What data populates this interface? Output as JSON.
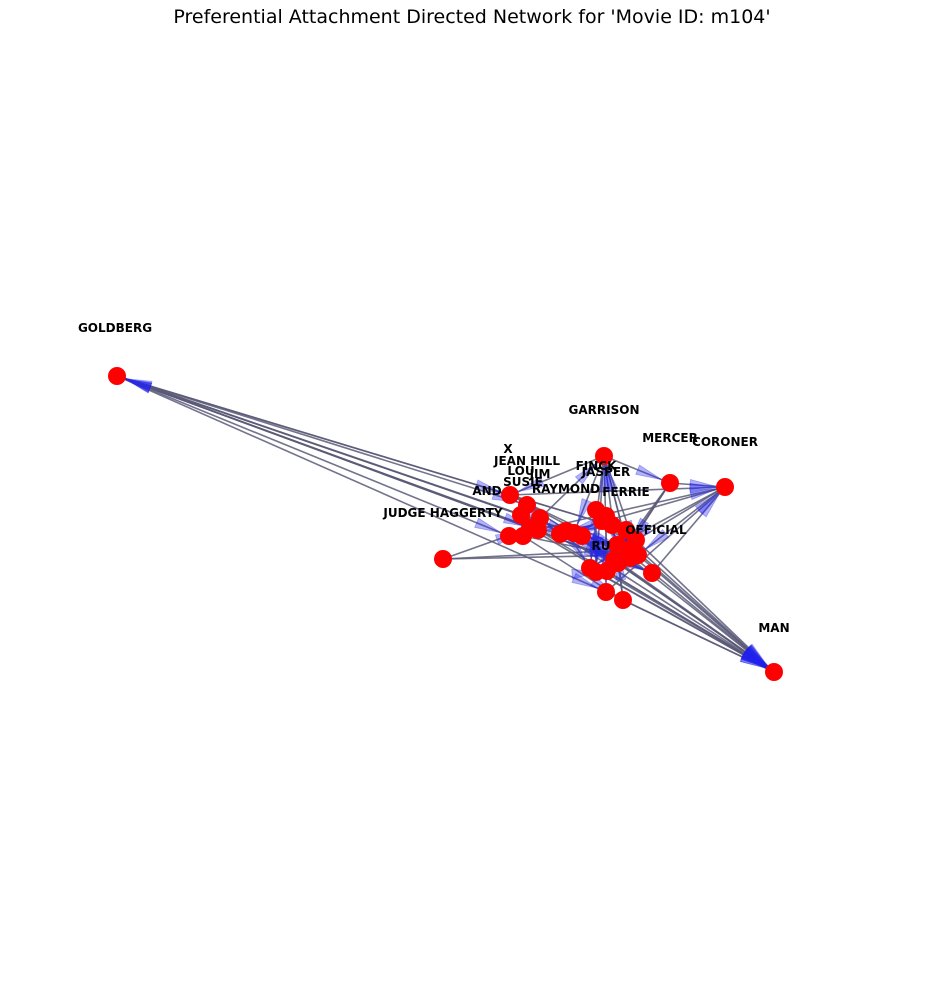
{
  "title": "Preferential Attachment Directed Network for 'Movie ID: m104'",
  "colors": {
    "node": "#ff0000",
    "edge": "#5a5a78",
    "arrow": "#2222ee"
  },
  "nodes": [
    {
      "id": "GOLDBERG",
      "label": "GOLDBERG"
    },
    {
      "id": "GARRISON",
      "label": "GARRISON"
    },
    {
      "id": "MERCER",
      "label": "MERCER"
    },
    {
      "id": "CORONER",
      "label": "CORONER"
    },
    {
      "id": "X",
      "label": "X"
    },
    {
      "id": "JEAN HILL",
      "label": "JEAN HILL"
    },
    {
      "id": "LOU",
      "label": "LOU"
    },
    {
      "id": "JIM",
      "label": "JIM"
    },
    {
      "id": "SUSIE",
      "label": "SUSIE"
    },
    {
      "id": "FINCK",
      "label": "FINCK"
    },
    {
      "id": "JASPER",
      "label": "JASPER"
    },
    {
      "id": "RAYMOND",
      "label": "RAYMOND"
    },
    {
      "id": "FERRIE",
      "label": "FERRIE"
    },
    {
      "id": "ANDY",
      "label": "AND"
    },
    {
      "id": "JUDGE HAGGERTY",
      "label": "JUDGE HAGGERTY"
    },
    {
      "id": "OFFICIAL",
      "label": "OFFICIAL"
    },
    {
      "id": "RUDOLPH",
      "label": "RU"
    },
    {
      "id": "MAN",
      "label": "MAN"
    },
    {
      "id": "N1",
      "label": ""
    },
    {
      "id": "N2",
      "label": ""
    },
    {
      "id": "N3",
      "label": ""
    },
    {
      "id": "N4",
      "label": ""
    },
    {
      "id": "N5",
      "label": ""
    },
    {
      "id": "N6",
      "label": ""
    },
    {
      "id": "N7",
      "label": ""
    },
    {
      "id": "N8",
      "label": ""
    },
    {
      "id": "N9",
      "label": ""
    },
    {
      "id": "N10",
      "label": ""
    },
    {
      "id": "N11",
      "label": ""
    },
    {
      "id": "N12",
      "label": ""
    },
    {
      "id": "N13",
      "label": ""
    },
    {
      "id": "N14",
      "label": ""
    },
    {
      "id": "N15",
      "label": ""
    },
    {
      "id": "N16",
      "label": ""
    },
    {
      "id": "N17",
      "label": ""
    },
    {
      "id": "N18",
      "label": ""
    }
  ],
  "edges": [
    [
      "GOLDBERG",
      "X"
    ],
    [
      "GOLDBERG",
      "ANDY"
    ],
    [
      "GOLDBERG",
      "JEAN HILL"
    ],
    [
      "GOLDBERG",
      "N1"
    ],
    [
      "GOLDBERG",
      "N2"
    ],
    [
      "GOLDBERG",
      "N5"
    ],
    [
      "GOLDBERG",
      "N9"
    ],
    [
      "GOLDBERG",
      "N10"
    ],
    [
      "N1",
      "GOLDBERG"
    ],
    [
      "N2",
      "GOLDBERG"
    ],
    [
      "N9",
      "GOLDBERG"
    ],
    [
      "FERRIE",
      "GOLDBERG"
    ],
    [
      "GARRISON",
      "X"
    ],
    [
      "GARRISON",
      "N6"
    ],
    [
      "GARRISON",
      "N3"
    ],
    [
      "GARRISON",
      "N14"
    ],
    [
      "GARRISON",
      "MERCER"
    ],
    [
      "GARRISON",
      "N8"
    ],
    [
      "GARRISON",
      "N12"
    ],
    [
      "MERCER",
      "N5"
    ],
    [
      "MERCER",
      "N7"
    ],
    [
      "MERCER",
      "CORONER"
    ],
    [
      "MERCER",
      "N13"
    ],
    [
      "CORONER",
      "N12"
    ],
    [
      "CORONER",
      "N15"
    ],
    [
      "CORONER",
      "N4"
    ],
    [
      "CORONER",
      "N6"
    ],
    [
      "X",
      "N5"
    ],
    [
      "X",
      "FERRIE"
    ],
    [
      "X",
      "N14"
    ],
    [
      "JEAN HILL",
      "N7"
    ],
    [
      "LOU",
      "N9"
    ],
    [
      "JIM",
      "N15"
    ],
    [
      "FINCK",
      "N8"
    ],
    [
      "JASPER",
      "N10"
    ],
    [
      "RAYMOND",
      "N12"
    ],
    [
      "SUSIE",
      "N11"
    ],
    [
      "SUSIE",
      "N14"
    ],
    [
      "JUDGE HAGGERTY",
      "N16"
    ],
    [
      "JUDGE HAGGERTY",
      "N6"
    ],
    [
      "JUDGE HAGGERTY",
      "N5"
    ],
    [
      "N1",
      "N13"
    ],
    [
      "N2",
      "N16"
    ],
    [
      "N3",
      "N17"
    ],
    [
      "N4",
      "N18"
    ],
    [
      "N1",
      "MAN"
    ],
    [
      "N2",
      "MAN"
    ],
    [
      "N3",
      "MAN"
    ],
    [
      "N5",
      "MAN"
    ],
    [
      "N6",
      "MAN"
    ],
    [
      "N7",
      "MAN"
    ],
    [
      "N8",
      "MAN"
    ],
    [
      "N10",
      "MAN"
    ],
    [
      "N11",
      "MAN"
    ],
    [
      "N12",
      "MAN"
    ],
    [
      "N13",
      "MAN"
    ],
    [
      "N14",
      "MAN"
    ],
    [
      "N15",
      "MAN"
    ],
    [
      "N16",
      "MAN"
    ],
    [
      "N17",
      "MAN"
    ],
    [
      "N18",
      "MAN"
    ],
    [
      "OFFICIAL",
      "MAN"
    ],
    [
      "RUDOLPH",
      "MAN"
    ],
    [
      "X",
      "CORONER"
    ],
    [
      "ANDY",
      "CORONER"
    ],
    [
      "N9",
      "CORONER"
    ],
    [
      "N10",
      "CORONER"
    ],
    [
      "N11",
      "GARRISON"
    ],
    [
      "N14",
      "GARRISON"
    ],
    [
      "N16",
      "GARRISON"
    ],
    [
      "RUDOLPH",
      "GARRISON"
    ],
    [
      "N5",
      "N17"
    ],
    [
      "N6",
      "N18"
    ],
    [
      "N7",
      "OFFICIAL"
    ],
    [
      "N8",
      "RUDOLPH"
    ],
    [
      "N11",
      "N4"
    ],
    [
      "N13",
      "N3"
    ],
    [
      "N15",
      "N18"
    ]
  ]
}
